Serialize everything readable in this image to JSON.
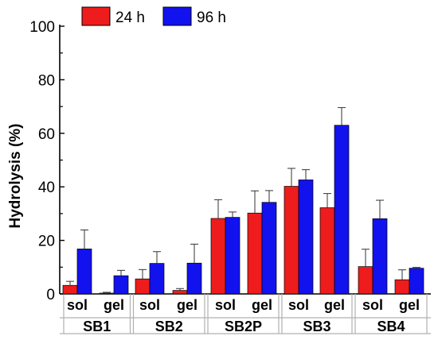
{
  "chart_data": {
    "type": "bar",
    "ylabel": "Hydrolysis (%)",
    "ylim": [
      0,
      100
    ],
    "yticks": [
      0,
      20,
      40,
      60,
      80,
      100
    ],
    "legend": {
      "placement": "top-left",
      "entries": [
        "24 h",
        "96 h"
      ]
    },
    "categories": [
      {
        "group": "SB1",
        "sub": "sol"
      },
      {
        "group": "SB1",
        "sub": "gel"
      },
      {
        "group": "SB2",
        "sub": "sol"
      },
      {
        "group": "SB2",
        "sub": "gel"
      },
      {
        "group": "SB2P",
        "sub": "sol"
      },
      {
        "group": "SB2P",
        "sub": "gel"
      },
      {
        "group": "SB3",
        "sub": "sol"
      },
      {
        "group": "SB3",
        "sub": "gel"
      },
      {
        "group": "SB4",
        "sub": "sol"
      },
      {
        "group": "SB4",
        "sub": "gel"
      }
    ],
    "groups": [
      "SB1",
      "SB2",
      "SB2P",
      "SB3",
      "SB4"
    ],
    "series": [
      {
        "name": "24 h",
        "color": "#ee1c1c",
        "values": [
          3.2,
          0.3,
          5.6,
          1.3,
          28.2,
          30.2,
          40.2,
          32.2,
          10.2,
          5.3
        ],
        "errors": [
          1.5,
          0.3,
          3.5,
          0.7,
          7.0,
          8.3,
          6.7,
          5.3,
          6.5,
          3.7
        ]
      },
      {
        "name": "96 h",
        "color": "#1212ee",
        "values": [
          16.8,
          6.8,
          11.4,
          11.5,
          28.6,
          34.2,
          42.6,
          63.0,
          28.1,
          9.6
        ],
        "errors": [
          7.1,
          2.0,
          4.4,
          7.1,
          2.0,
          4.4,
          3.8,
          6.6,
          6.9,
          0.3
        ]
      }
    ]
  }
}
